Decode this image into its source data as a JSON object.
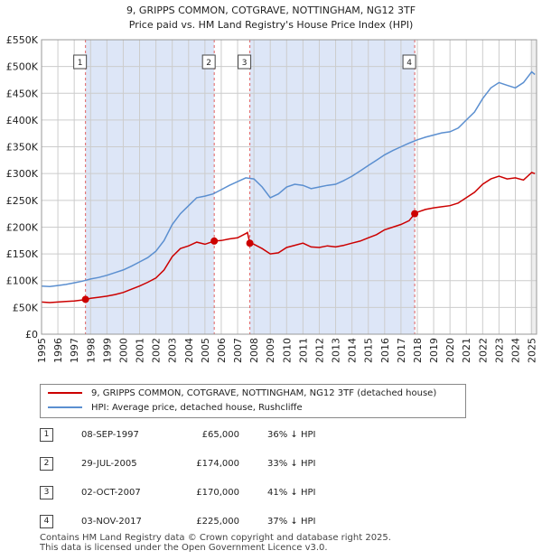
{
  "chart_data": {
    "type": "line",
    "title": "9, GRIPPS COMMON, COTGRAVE, NOTTINGHAM, NG12 3TF",
    "subtitle": "Price paid vs. HM Land Registry's House Price Index (HPI)",
    "xlim": [
      1995,
      2025.3
    ],
    "ylim": [
      0,
      550000
    ],
    "x_ticks": [
      "1995",
      "1996",
      "1997",
      "1998",
      "1999",
      "2000",
      "2001",
      "2002",
      "2003",
      "2004",
      "2005",
      "2006",
      "2007",
      "2008",
      "2009",
      "2010",
      "2011",
      "2012",
      "2013",
      "2014",
      "2015",
      "2016",
      "2017",
      "2018",
      "2019",
      "2020",
      "2021",
      "2022",
      "2023",
      "2024",
      "2025"
    ],
    "y_ticks": [
      {
        "value": 0,
        "label": "£0"
      },
      {
        "value": 50000,
        "label": "£50K"
      },
      {
        "value": 100000,
        "label": "£100K"
      },
      {
        "value": 150000,
        "label": "£150K"
      },
      {
        "value": 200000,
        "label": "£200K"
      },
      {
        "value": 250000,
        "label": "£250K"
      },
      {
        "value": 300000,
        "label": "£300K"
      },
      {
        "value": 350000,
        "label": "£350K"
      },
      {
        "value": 400000,
        "label": "£400K"
      },
      {
        "value": 450000,
        "label": "£450K"
      },
      {
        "value": 500000,
        "label": "£500K"
      },
      {
        "value": 550000,
        "label": "£550K"
      }
    ],
    "grid": true,
    "colors": {
      "property": "#cc0000",
      "hpi": "#5b8fd0",
      "shade": "#dde6f7",
      "marker_line": "#e06060"
    },
    "series": [
      {
        "name": "9, GRIPPS COMMON, COTGRAVE, NOTTINGHAM, NG12 3TF (detached house)",
        "key": "property",
        "points": [
          [
            1995.0,
            60000
          ],
          [
            1995.5,
            59000
          ],
          [
            1996.0,
            60000
          ],
          [
            1996.5,
            61000
          ],
          [
            1997.0,
            62000
          ],
          [
            1997.5,
            64000
          ],
          [
            1997.69,
            65000
          ],
          [
            1998.0,
            67000
          ],
          [
            1998.5,
            69000
          ],
          [
            1999.0,
            71000
          ],
          [
            1999.5,
            74000
          ],
          [
            2000.0,
            78000
          ],
          [
            2000.5,
            84000
          ],
          [
            2001.0,
            90000
          ],
          [
            2001.5,
            97000
          ],
          [
            2002.0,
            105000
          ],
          [
            2002.5,
            120000
          ],
          [
            2003.0,
            145000
          ],
          [
            2003.5,
            160000
          ],
          [
            2004.0,
            165000
          ],
          [
            2004.5,
            172000
          ],
          [
            2005.0,
            168000
          ],
          [
            2005.57,
            174000
          ],
          [
            2006.0,
            175000
          ],
          [
            2006.5,
            178000
          ],
          [
            2007.0,
            180000
          ],
          [
            2007.5,
            188000
          ],
          [
            2007.6,
            190000
          ],
          [
            2007.75,
            170000
          ],
          [
            2008.0,
            168000
          ],
          [
            2008.5,
            160000
          ],
          [
            2009.0,
            150000
          ],
          [
            2009.5,
            152000
          ],
          [
            2010.0,
            162000
          ],
          [
            2010.5,
            166000
          ],
          [
            2011.0,
            170000
          ],
          [
            2011.5,
            163000
          ],
          [
            2012.0,
            162000
          ],
          [
            2012.5,
            165000
          ],
          [
            2013.0,
            163000
          ],
          [
            2013.5,
            166000
          ],
          [
            2014.0,
            170000
          ],
          [
            2014.5,
            174000
          ],
          [
            2015.0,
            180000
          ],
          [
            2015.5,
            186000
          ],
          [
            2016.0,
            195000
          ],
          [
            2016.5,
            200000
          ],
          [
            2017.0,
            205000
          ],
          [
            2017.5,
            212000
          ],
          [
            2017.84,
            225000
          ],
          [
            2018.0,
            228000
          ],
          [
            2018.5,
            233000
          ],
          [
            2019.0,
            236000
          ],
          [
            2019.5,
            238000
          ],
          [
            2020.0,
            240000
          ],
          [
            2020.5,
            245000
          ],
          [
            2021.0,
            255000
          ],
          [
            2021.5,
            265000
          ],
          [
            2022.0,
            280000
          ],
          [
            2022.5,
            290000
          ],
          [
            2023.0,
            295000
          ],
          [
            2023.5,
            290000
          ],
          [
            2024.0,
            292000
          ],
          [
            2024.5,
            288000
          ],
          [
            2025.0,
            302000
          ],
          [
            2025.2,
            300000
          ]
        ]
      },
      {
        "name": "HPI: Average price, detached house, Rushcliffe",
        "key": "hpi",
        "points": [
          [
            1995.0,
            90000
          ],
          [
            1995.5,
            89000
          ],
          [
            1996.0,
            91000
          ],
          [
            1996.5,
            93000
          ],
          [
            1997.0,
            96000
          ],
          [
            1997.5,
            99000
          ],
          [
            1998.0,
            103000
          ],
          [
            1998.5,
            106000
          ],
          [
            1999.0,
            110000
          ],
          [
            1999.5,
            115000
          ],
          [
            2000.0,
            120000
          ],
          [
            2000.5,
            127000
          ],
          [
            2001.0,
            135000
          ],
          [
            2001.5,
            143000
          ],
          [
            2002.0,
            155000
          ],
          [
            2002.5,
            175000
          ],
          [
            2003.0,
            205000
          ],
          [
            2003.5,
            225000
          ],
          [
            2004.0,
            240000
          ],
          [
            2004.5,
            255000
          ],
          [
            2005.0,
            258000
          ],
          [
            2005.5,
            262000
          ],
          [
            2006.0,
            270000
          ],
          [
            2006.5,
            278000
          ],
          [
            2007.0,
            285000
          ],
          [
            2007.5,
            292000
          ],
          [
            2008.0,
            290000
          ],
          [
            2008.5,
            275000
          ],
          [
            2009.0,
            255000
          ],
          [
            2009.5,
            262000
          ],
          [
            2010.0,
            275000
          ],
          [
            2010.5,
            280000
          ],
          [
            2011.0,
            278000
          ],
          [
            2011.5,
            272000
          ],
          [
            2012.0,
            275000
          ],
          [
            2012.5,
            278000
          ],
          [
            2013.0,
            280000
          ],
          [
            2013.5,
            287000
          ],
          [
            2014.0,
            295000
          ],
          [
            2014.5,
            305000
          ],
          [
            2015.0,
            315000
          ],
          [
            2015.5,
            325000
          ],
          [
            2016.0,
            335000
          ],
          [
            2016.5,
            343000
          ],
          [
            2017.0,
            350000
          ],
          [
            2017.5,
            357000
          ],
          [
            2018.0,
            363000
          ],
          [
            2018.5,
            368000
          ],
          [
            2019.0,
            372000
          ],
          [
            2019.5,
            376000
          ],
          [
            2020.0,
            378000
          ],
          [
            2020.5,
            385000
          ],
          [
            2021.0,
            400000
          ],
          [
            2021.5,
            415000
          ],
          [
            2022.0,
            440000
          ],
          [
            2022.5,
            460000
          ],
          [
            2023.0,
            470000
          ],
          [
            2023.5,
            465000
          ],
          [
            2024.0,
            460000
          ],
          [
            2024.5,
            470000
          ],
          [
            2025.0,
            490000
          ],
          [
            2025.2,
            485000
          ]
        ]
      }
    ],
    "transactions": [
      {
        "label": "1",
        "x": 1997.69,
        "price": 65000
      },
      {
        "label": "2",
        "x": 2005.57,
        "price": 174000
      },
      {
        "label": "3",
        "x": 2007.75,
        "price": 170000
      },
      {
        "label": "4",
        "x": 2017.84,
        "price": 225000
      }
    ]
  },
  "legend": {
    "property_label": "9, GRIPPS COMMON, COTGRAVE, NOTTINGHAM, NG12 3TF (detached house)",
    "hpi_label": "HPI: Average price, detached house, Rushcliffe"
  },
  "table": [
    {
      "num": "1",
      "date": "08-SEP-1997",
      "price": "£65,000",
      "hpi": "36% ↓ HPI"
    },
    {
      "num": "2",
      "date": "29-JUL-2005",
      "price": "£174,000",
      "hpi": "33% ↓ HPI"
    },
    {
      "num": "3",
      "date": "02-OCT-2007",
      "price": "£170,000",
      "hpi": "41% ↓ HPI"
    },
    {
      "num": "4",
      "date": "03-NOV-2017",
      "price": "£225,000",
      "hpi": "37% ↓ HPI"
    }
  ],
  "footer": {
    "line1": "Contains HM Land Registry data © Crown copyright and database right 2025.",
    "line2": "This data is licensed under the Open Government Licence v3.0."
  }
}
